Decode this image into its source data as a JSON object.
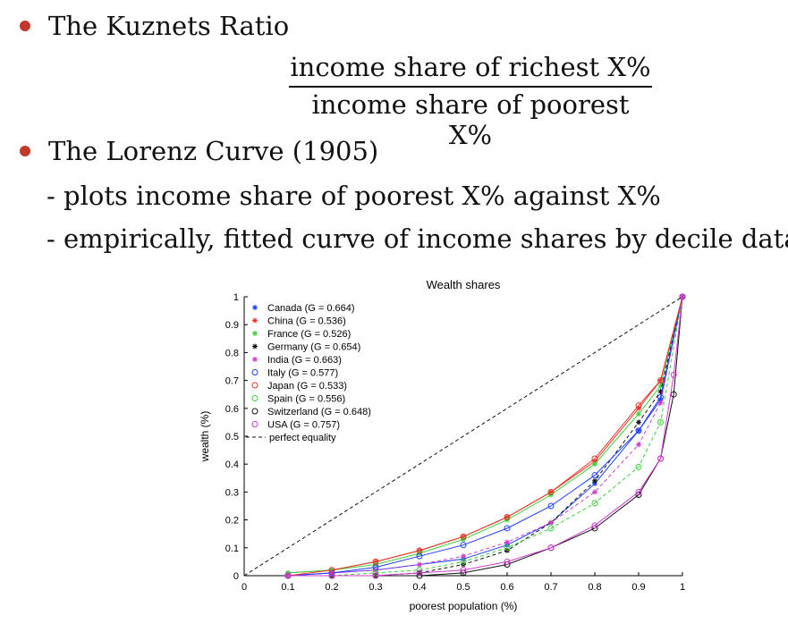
{
  "slide": {
    "bullet1": "The Kuznets Ratio",
    "numerator": "income share of richest X%",
    "denominator": "income share of poorest X%",
    "bullet2": "The Lorenz Curve (1905)",
    "sub1": "- plots income share of poorest X% against X%",
    "sub2": "- empirically, fitted curve of income shares by decile data"
  },
  "chart_data": {
    "type": "line",
    "title": "Wealth shares",
    "xlabel": "poorest population (%)",
    "ylabel": "wealth (%)",
    "xlim": [
      0,
      1
    ],
    "ylim": [
      0,
      1
    ],
    "xticks": [
      "0",
      "0.1",
      "0.2",
      "0.3",
      "0.4",
      "0.5",
      "0.6",
      "0.7",
      "0.8",
      "0.9",
      "1"
    ],
    "yticks": [
      "0",
      "0.1",
      "0.2",
      "0.3",
      "0.4",
      "0.5",
      "0.6",
      "0.7",
      "0.8",
      "0.9",
      "1"
    ],
    "legend_position": "top-left",
    "series": [
      {
        "name": "Canada (G = 0.664)",
        "color": "#1f3fff",
        "marker": "*",
        "dash": false,
        "x": [
          0.1,
          0.2,
          0.3,
          0.4,
          0.5,
          0.6,
          0.7,
          0.8,
          0.9,
          0.95,
          1
        ],
        "y": [
          0.0,
          0.01,
          0.02,
          0.04,
          0.06,
          0.11,
          0.19,
          0.33,
          0.52,
          0.63,
          1
        ]
      },
      {
        "name": "China (G = 0.536)",
        "color": "#e8352a",
        "marker": "*",
        "dash": false,
        "x": [
          0.1,
          0.2,
          0.3,
          0.4,
          0.5,
          0.6,
          0.7,
          0.8,
          0.9,
          0.95,
          1
        ],
        "y": [
          0.01,
          0.02,
          0.05,
          0.09,
          0.14,
          0.21,
          0.3,
          0.41,
          0.6,
          0.7,
          1
        ]
      },
      {
        "name": "France (G = 0.526)",
        "color": "#3ad13a",
        "marker": "*",
        "dash": false,
        "x": [
          0.1,
          0.2,
          0.3,
          0.4,
          0.5,
          0.6,
          0.7,
          0.8,
          0.9,
          0.95,
          1
        ],
        "y": [
          0.01,
          0.02,
          0.04,
          0.08,
          0.13,
          0.2,
          0.29,
          0.4,
          0.58,
          0.68,
          1
        ]
      },
      {
        "name": "Germany (G = 0.654)",
        "color": "#111111",
        "marker": "*",
        "dash": true,
        "x": [
          0.1,
          0.2,
          0.3,
          0.4,
          0.5,
          0.6,
          0.7,
          0.8,
          0.9,
          0.95,
          1
        ],
        "y": [
          0.0,
          0.0,
          0.0,
          0.01,
          0.04,
          0.09,
          0.19,
          0.34,
          0.55,
          0.66,
          1
        ]
      },
      {
        "name": "India (G = 0.663)",
        "color": "#d13ad1",
        "marker": "*",
        "dash": true,
        "x": [
          0.1,
          0.2,
          0.3,
          0.4,
          0.5,
          0.6,
          0.7,
          0.8,
          0.9,
          0.95,
          1
        ],
        "y": [
          0.0,
          0.01,
          0.02,
          0.04,
          0.07,
          0.12,
          0.19,
          0.3,
          0.47,
          0.62,
          1
        ]
      },
      {
        "name": "Italy (G = 0.577)",
        "color": "#1f3fff",
        "marker": "o",
        "dash": false,
        "x": [
          0.1,
          0.2,
          0.3,
          0.4,
          0.5,
          0.6,
          0.7,
          0.8,
          0.9,
          0.95,
          1
        ],
        "y": [
          0.0,
          0.01,
          0.03,
          0.07,
          0.11,
          0.17,
          0.25,
          0.36,
          0.52,
          0.64,
          1
        ]
      },
      {
        "name": "Japan (G = 0.533)",
        "color": "#e8352a",
        "marker": "o",
        "dash": false,
        "x": [
          0.1,
          0.2,
          0.3,
          0.4,
          0.5,
          0.6,
          0.7,
          0.8,
          0.9,
          0.95,
          1
        ],
        "y": [
          0.0,
          0.02,
          0.05,
          0.09,
          0.14,
          0.21,
          0.3,
          0.42,
          0.61,
          0.7,
          1
        ]
      },
      {
        "name": "Spain (G = 0.556)",
        "color": "#3ad13a",
        "marker": "o",
        "dash": true,
        "x": [
          0.1,
          0.2,
          0.3,
          0.4,
          0.5,
          0.6,
          0.7,
          0.8,
          0.9,
          0.95,
          1
        ],
        "y": [
          0.0,
          0.0,
          0.01,
          0.02,
          0.05,
          0.1,
          0.17,
          0.26,
          0.39,
          0.55,
          1
        ]
      },
      {
        "name": "Switzerland (G = 0.648)",
        "color": "#111111",
        "marker": "o",
        "dash": false,
        "x": [
          0.1,
          0.2,
          0.3,
          0.4,
          0.5,
          0.6,
          0.7,
          0.8,
          0.9,
          0.95,
          0.98,
          1
        ],
        "y": [
          0.0,
          0.0,
          0.0,
          0.0,
          0.01,
          0.04,
          0.1,
          0.17,
          0.29,
          0.42,
          0.65,
          1
        ]
      },
      {
        "name": "USA (G = 0.757)",
        "color": "#d13ad1",
        "marker": "o",
        "dash": false,
        "x": [
          0.1,
          0.2,
          0.3,
          0.4,
          0.5,
          0.6,
          0.7,
          0.8,
          0.9,
          0.95,
          0.98,
          1
        ],
        "y": [
          0.0,
          0.0,
          0.0,
          0.01,
          0.02,
          0.05,
          0.1,
          0.18,
          0.3,
          0.42,
          0.72,
          1
        ]
      },
      {
        "name": "perfect equality",
        "color": "#111111",
        "marker": "none",
        "dash": true,
        "x": [
          0,
          1
        ],
        "y": [
          0,
          1
        ]
      }
    ]
  }
}
